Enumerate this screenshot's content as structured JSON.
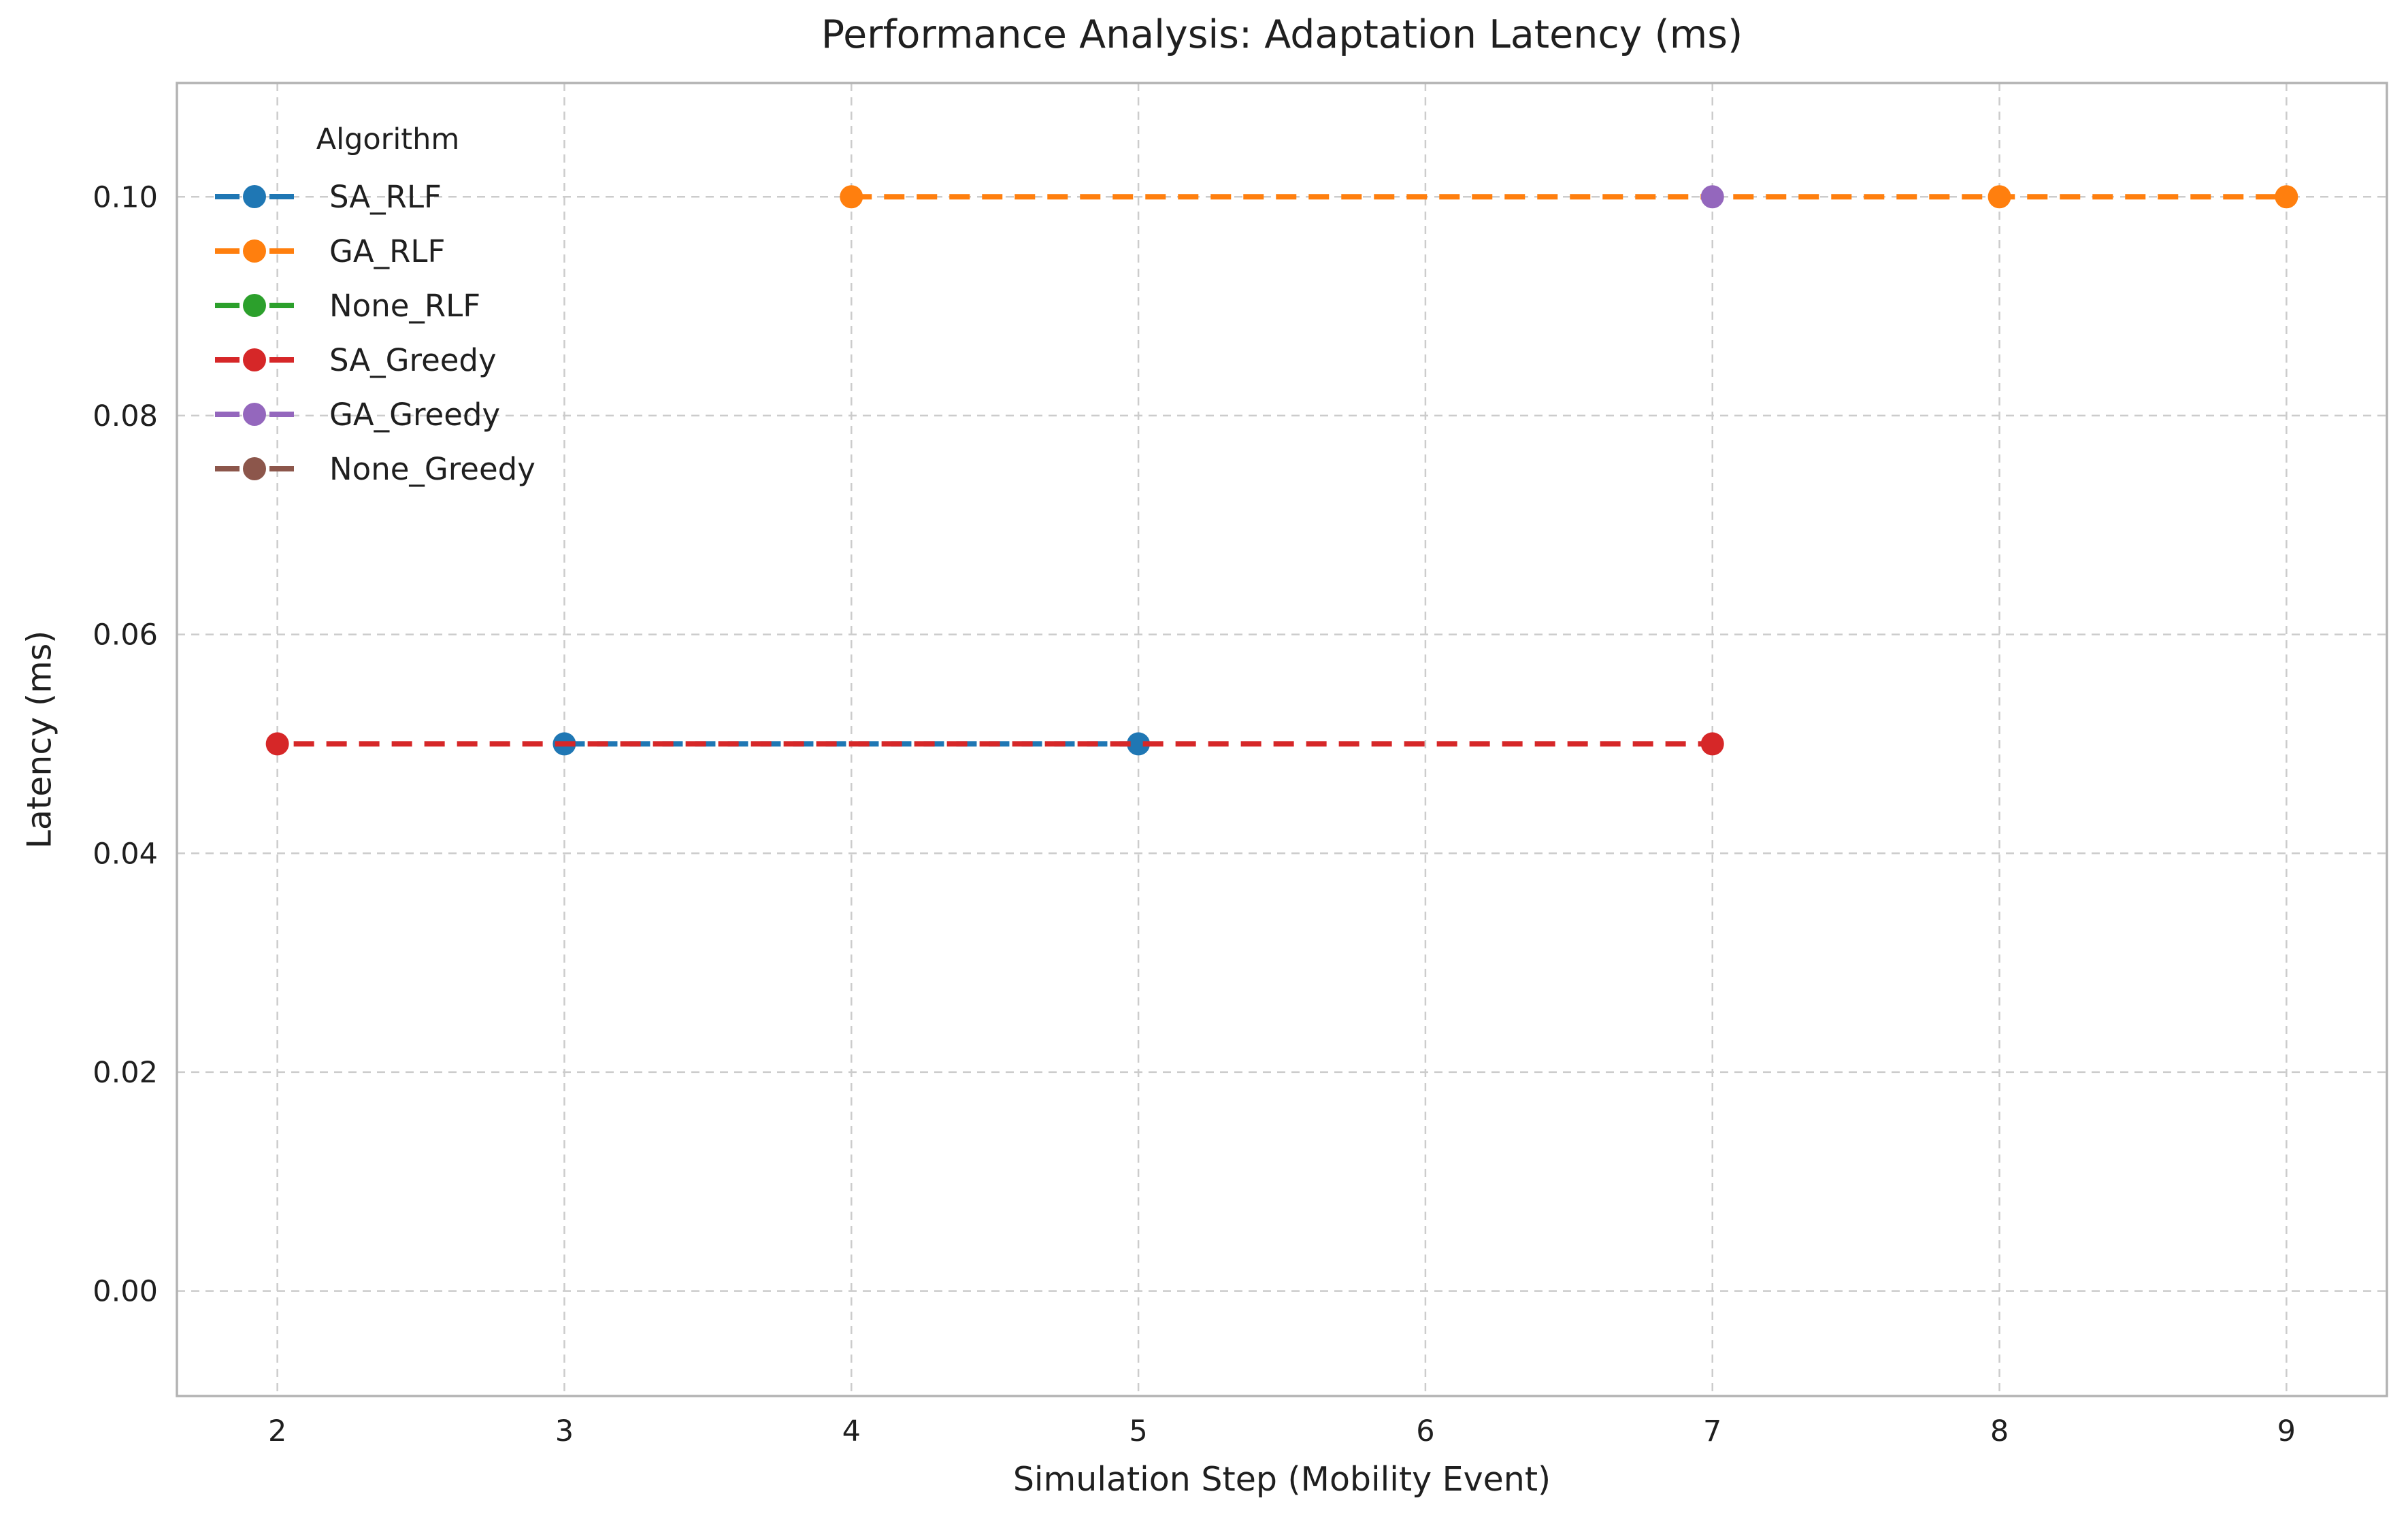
{
  "chart_data": {
    "type": "line",
    "title": "Performance Analysis: Adaptation Latency (ms)",
    "xlabel": "Simulation Step (Mobility Event)",
    "ylabel": "Latency (ms)",
    "legend_title": "Algorithm",
    "legend_position": "upper left",
    "grid": true,
    "grid_color": "#cccccc",
    "spine_color": "#b3b3b3",
    "text_color": "#1f1f1f",
    "background_color": "#ffffff",
    "linestyle": "dashed",
    "marker": "circle",
    "xlim": [
      1.65,
      9.35
    ],
    "ylim": [
      -0.0096,
      0.1104
    ],
    "x_ticks": [
      2,
      3,
      4,
      5,
      6,
      7,
      8,
      9
    ],
    "y_ticks": [
      {
        "value": 0.0,
        "label": "0.00"
      },
      {
        "value": 0.02,
        "label": "0.02"
      },
      {
        "value": 0.04,
        "label": "0.04"
      },
      {
        "value": 0.06,
        "label": "0.06"
      },
      {
        "value": 0.08,
        "label": "0.08"
      },
      {
        "value": 0.1,
        "label": "0.10"
      }
    ],
    "series": [
      {
        "name": "SA_RLF",
        "color": "#1f77b4",
        "dash_offset": 0,
        "points": [
          [
            3,
            0.05
          ],
          [
            5,
            0.05
          ]
        ]
      },
      {
        "name": "GA_RLF",
        "color": "#ff7f0e",
        "dash_offset": 0,
        "points": [
          [
            4,
            0.1
          ],
          [
            8,
            0.1
          ],
          [
            9,
            0.1
          ]
        ]
      },
      {
        "name": "None_RLF",
        "color": "#2ca02c",
        "dash_offset": 0,
        "points": []
      },
      {
        "name": "SA_Greedy",
        "color": "#d62728",
        "dash_offset": 24,
        "points": [
          [
            2,
            0.05
          ],
          [
            7,
            0.05
          ]
        ]
      },
      {
        "name": "GA_Greedy",
        "color": "#9467bd",
        "dash_offset": 0,
        "points": [
          [
            7,
            0.1
          ]
        ]
      },
      {
        "name": "None_Greedy",
        "color": "#8c564b",
        "dash_offset": 0,
        "points": []
      }
    ]
  }
}
